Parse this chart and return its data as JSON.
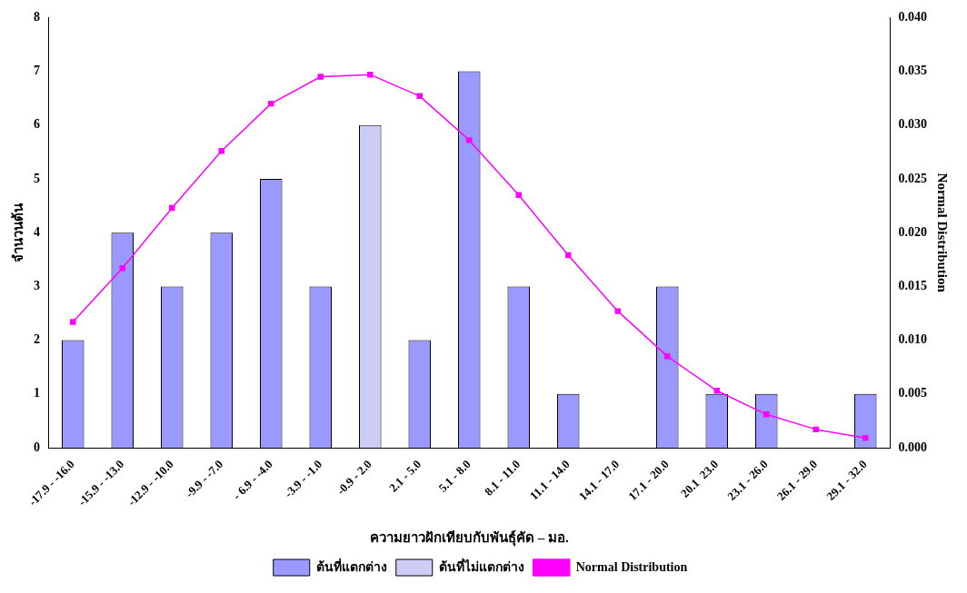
{
  "chart_data": {
    "type": "bar",
    "xlabel": "ความยาวฝักเทียบกับพันธุ์คัด – มอ.",
    "ylabel": "จำนวนต้น",
    "y2label": "Normal Distribution",
    "categories": [
      "-17.9 - -16.0",
      "-15.9 - -13.0",
      "-12.9 - -10.0",
      "-9.9 - -7.0",
      "- 6.9 - -4.0",
      "-3.9 - -1.0",
      "-0.9 - 2.0",
      "2.1 - 5.0",
      "5.1 - 8.0",
      "8.1 - 11.0",
      "11.1 - 14.0",
      "14.1 - 17.0",
      "17.1 - 20.0",
      "20.1  23.0",
      "23.1 - 26.0",
      "26.1 - 29.0",
      "29.1 - 32.0"
    ],
    "series": [
      {
        "name": "ต้นที่แตกต่าง",
        "color": "#9999ff",
        "values": [
          2,
          4,
          3,
          4,
          5,
          3,
          null,
          2,
          7,
          3,
          1,
          0,
          3,
          1,
          1,
          0,
          1
        ]
      },
      {
        "name": "ต้นที่ไม่แตกต่าง",
        "color": "#ccccf6",
        "values": [
          null,
          null,
          null,
          null,
          null,
          null,
          6,
          null,
          null,
          null,
          null,
          null,
          null,
          null,
          null,
          null,
          null
        ]
      },
      {
        "name": "Normal Distribution",
        "type": "line",
        "axis": "y2",
        "color": "#ff00ff",
        "marker": "square",
        "values": [
          0.0117,
          0.0167,
          0.0223,
          0.0276,
          0.032,
          0.0345,
          0.0347,
          0.0327,
          0.0286,
          0.0235,
          0.0179,
          0.0127,
          0.0085,
          0.0053,
          0.0031,
          0.0017,
          0.0009
        ]
      }
    ],
    "ylim": [
      0,
      8
    ],
    "yticks": [
      0,
      1,
      2,
      3,
      4,
      5,
      6,
      7,
      8
    ],
    "y2lim": [
      0,
      0.04
    ],
    "y2ticks": [
      {
        "value": 0,
        "label": "0.000"
      },
      {
        "value": 0.005,
        "label": "0.005"
      },
      {
        "value": 0.01,
        "label": "0.010"
      },
      {
        "value": 0.015,
        "label": "0.015"
      },
      {
        "value": 0.02,
        "label": "0.020"
      },
      {
        "value": 0.025,
        "label": "0.025"
      },
      {
        "value": 0.03,
        "label": "0.030"
      },
      {
        "value": 0.035,
        "label": "0.035"
      },
      {
        "value": 0.04,
        "label": "0.040"
      }
    ],
    "grid": false,
    "legend": "bottom"
  }
}
